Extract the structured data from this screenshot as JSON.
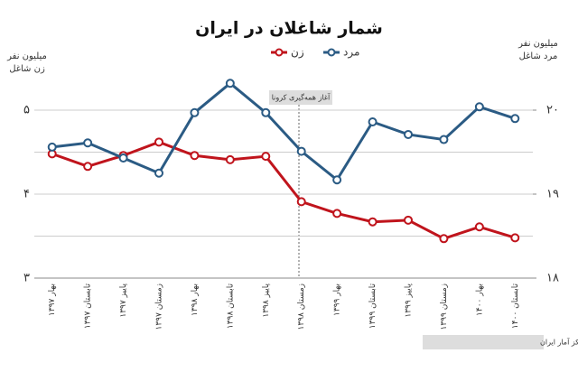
{
  "chart_data": {
    "type": "line",
    "title": "شمار شاغلان در ایران",
    "y_label": [
      "میلیون نفر",
      "زن شاغل"
    ],
    "y2_label": [
      "میلیون نفر",
      "مرد شاغل"
    ],
    "annotation": "آغاز همه‌گیری کرونا",
    "source": "منبع: گزارش‌های فصلی مرکز آمار ایران",
    "categories": [
      "بهار ۱۳۹۷",
      "تابستان ۱۳۹۷",
      "پاییز ۱۳۹۷",
      "زمستان ۱۳۹۷",
      "بهار ۱۳۹۸",
      "تابستان ۱۳۹۸",
      "پاییز ۱۳۹۸",
      "زمستان ۱۳۹۸",
      "بهار ۱۳۹۹",
      "تابستان ۱۳۹۹",
      "پاییز ۱۳۹۹",
      "زمستان ۱۳۹۹",
      "بهار ۱۴۰۰",
      "تابستان ۱۴۰۰"
    ],
    "series": [
      {
        "name": "زن",
        "color": "#c0141c",
        "values": [
          4.48,
          4.33,
          4.46,
          4.62,
          4.46,
          4.41,
          4.45,
          3.91,
          3.77,
          3.67,
          3.69,
          3.47,
          3.61,
          3.48
        ]
      },
      {
        "name": "مرد",
        "color": "#2b5b84",
        "axis": "y2",
        "values": [
          19.56,
          19.61,
          19.43,
          19.25,
          19.97,
          20.32,
          19.97,
          19.51,
          19.17,
          19.86,
          19.71,
          19.65,
          20.04,
          19.9
        ]
      }
    ],
    "ylim": [
      3,
      5.5
    ],
    "yticks": [
      {
        "value": 3,
        "label": "۳"
      },
      {
        "value": 4,
        "label": "۴"
      },
      {
        "value": 5,
        "label": "۵"
      }
    ],
    "y_minor_ticks": [
      3.5,
      4.5
    ],
    "y2lim": [
      18,
      20.5
    ],
    "y2ticks": [
      {
        "value": 18,
        "label": "۱۸"
      },
      {
        "value": 19,
        "label": "۱۹"
      },
      {
        "value": 20,
        "label": "۲۰"
      }
    ],
    "grid": true
  }
}
